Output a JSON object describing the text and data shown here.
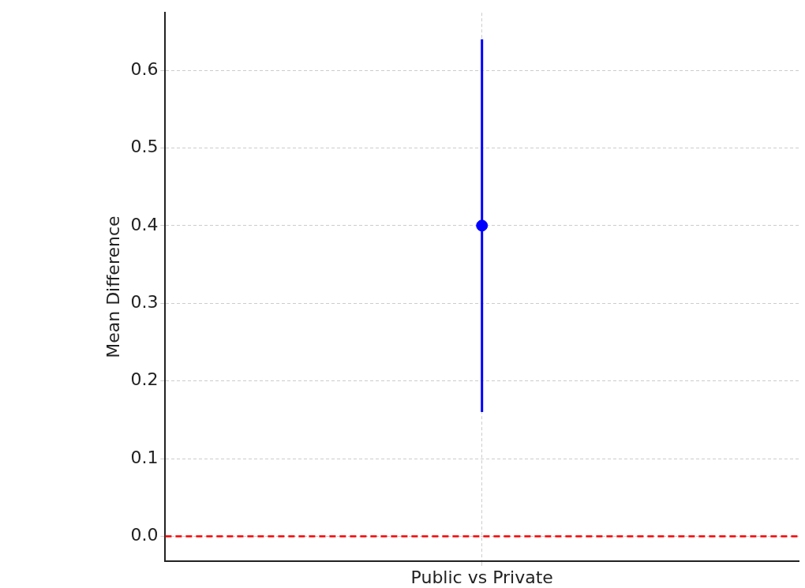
{
  "chart_data": {
    "type": "scatter",
    "ylabel": "Mean Difference",
    "categories": [
      "Public vs Private"
    ],
    "values": [
      0.4
    ],
    "errors": [
      0.24
    ],
    "color": "#0000ff",
    "marker": "circle",
    "ylim": [
      -0.032,
      0.674
    ],
    "yticks": [
      {
        "value": 0,
        "label": "0.0"
      },
      0.1,
      0.2,
      0.3,
      0.4,
      0.5,
      0.6
    ],
    "grid": true,
    "ref_lines": [
      {
        "axis": "y",
        "value": 0,
        "color": "#ff0000",
        "line_style": "dashed"
      }
    ]
  }
}
